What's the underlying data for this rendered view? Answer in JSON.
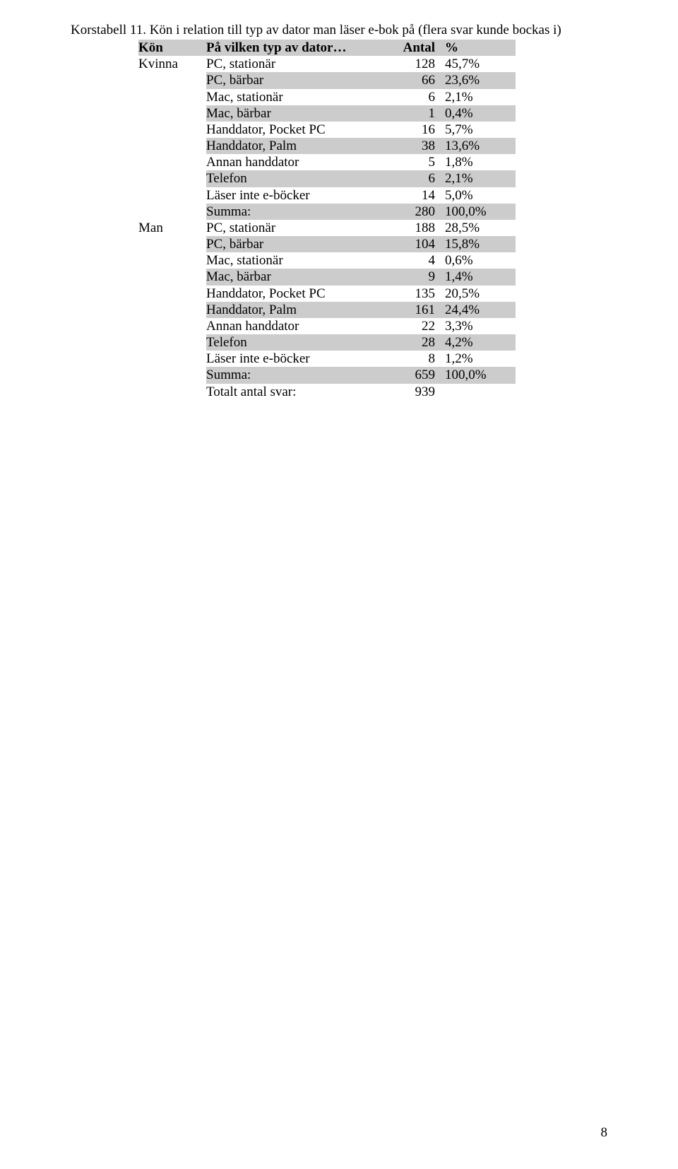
{
  "title": "Korstabell 11. Kön i relation till typ av dator man läser e-bok på (flera svar kunde bockas i)",
  "header": {
    "kon": "Kön",
    "item": "På vilken typ av dator…",
    "antal": "Antal",
    "pct": "%"
  },
  "groups": [
    {
      "kon": "Kvinna",
      "rows": [
        {
          "item": "PC, stationär",
          "antal": "128",
          "pct": "45,7%",
          "shade": false
        },
        {
          "item": "PC, bärbar",
          "antal": "66",
          "pct": "23,6%",
          "shade": true
        },
        {
          "item": "Mac, stationär",
          "antal": "6",
          "pct": "2,1%",
          "shade": false
        },
        {
          "item": "Mac, bärbar",
          "antal": "1",
          "pct": "0,4%",
          "shade": true
        },
        {
          "item": "Handdator, Pocket PC",
          "antal": "16",
          "pct": "5,7%",
          "shade": false
        },
        {
          "item": "Handdator, Palm",
          "antal": "38",
          "pct": "13,6%",
          "shade": true
        },
        {
          "item": "Annan handdator",
          "antal": "5",
          "pct": "1,8%",
          "shade": false
        },
        {
          "item": "Telefon",
          "antal": "6",
          "pct": "2,1%",
          "shade": true
        },
        {
          "item": "Läser inte e-böcker",
          "antal": "14",
          "pct": "5,0%",
          "shade": false
        },
        {
          "item": "Summa:",
          "antal": "280",
          "pct": "100,0%",
          "shade": true
        }
      ]
    },
    {
      "kon": "Man",
      "rows": [
        {
          "item": "PC, stationär",
          "antal": "188",
          "pct": "28,5%",
          "shade": false
        },
        {
          "item": "PC, bärbar",
          "antal": "104",
          "pct": "15,8%",
          "shade": true
        },
        {
          "item": "Mac, stationär",
          "antal": "4",
          "pct": "0,6%",
          "shade": false
        },
        {
          "item": "Mac, bärbar",
          "antal": "9",
          "pct": "1,4%",
          "shade": true
        },
        {
          "item": "Handdator, Pocket PC",
          "antal": "135",
          "pct": "20,5%",
          "shade": false
        },
        {
          "item": "Handdator, Palm",
          "antal": "161",
          "pct": "24,4%",
          "shade": true
        },
        {
          "item": "Annan handdator",
          "antal": "22",
          "pct": "3,3%",
          "shade": false
        },
        {
          "item": "Telefon",
          "antal": "28",
          "pct": "4,2%",
          "shade": true
        },
        {
          "item": "Läser inte e-böcker",
          "antal": "8",
          "pct": "1,2%",
          "shade": false
        },
        {
          "item": "Summa:",
          "antal": "659",
          "pct": "100,0%",
          "shade": true
        }
      ]
    }
  ],
  "total": {
    "label": "Totalt antal svar:",
    "value": "939"
  },
  "page_number": "8"
}
